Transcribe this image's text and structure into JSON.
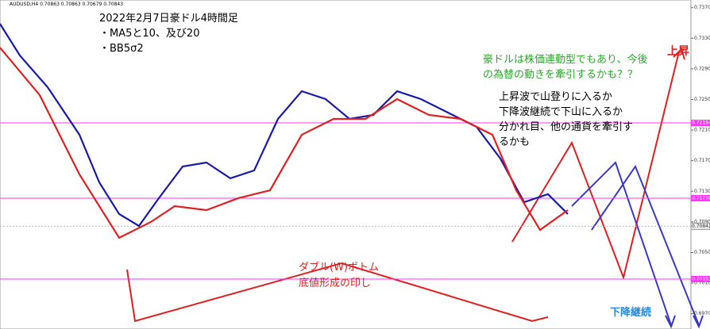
{
  "chart_data": {
    "type": "line",
    "symbol_label": "AUDUSD,H4  0.70863 0.70863 0.70679 0.70843",
    "title": "2022年2月7日豪ドル4時間足",
    "notes": [
      "・MA5と10、及び20",
      "・BB5σ2"
    ],
    "annotations": {
      "green": [
        "豪ドルは株価連動型でもあり、今後",
        "の為替の動きを牽引するかも？？"
      ],
      "black": [
        "上昇波で山登りに入るか",
        "下降波継続で下山に入るか",
        "分かれ目、他の通貨を牽引す",
        "るかも"
      ],
      "up": "上昇",
      "down": "下降継続",
      "bottom": [
        "ダブル(W)ボトム",
        "底値形成の印し"
      ]
    },
    "xlim": [
      0,
      870
    ],
    "ylim": [
      0.695,
      0.738
    ],
    "yticks": [
      {
        "value": 0.697,
        "label": "0.69700"
      },
      {
        "value": 0.701,
        "label": "0.70100"
      },
      {
        "value": 0.705,
        "label": "0.70500"
      },
      {
        "value": 0.709,
        "label": "0.70900"
      },
      {
        "value": 0.713,
        "label": "0.71300"
      },
      {
        "value": 0.717,
        "label": "0.71700"
      },
      {
        "value": 0.721,
        "label": "0.72100"
      },
      {
        "value": 0.725,
        "label": "0.72500"
      },
      {
        "value": 0.729,
        "label": "0.72900"
      },
      {
        "value": 0.733,
        "label": "0.73300"
      },
      {
        "value": 0.737,
        "label": "0.73700"
      }
    ],
    "levels": [
      {
        "value": 0.72194,
        "label": "0.72194"
      },
      {
        "value": 0.7121,
        "label": "0.71210"
      },
      {
        "value": 0.70153,
        "label": "0.70153"
      }
    ],
    "level_color": "#ff33ff",
    "current_price": {
      "value": 0.70843,
      "label": "0.70843"
    },
    "series": [
      {
        "name": "MA20",
        "color": "#1a1aa8",
        "x": [
          0,
          25,
          60,
          100,
          125,
          150,
          175,
          200,
          230,
          260,
          290,
          320,
          350,
          380,
          410,
          440,
          470,
          500,
          530,
          560,
          600,
          630,
          660,
          690,
          715
        ],
        "values": [
          0.73489,
          0.73075,
          0.7266,
          0.72039,
          0.71417,
          0.71003,
          0.70847,
          0.7121,
          0.71624,
          0.71676,
          0.71469,
          0.71572,
          0.72246,
          0.72608,
          0.72505,
          0.72246,
          0.72298,
          0.72608,
          0.72505,
          0.72349,
          0.72142,
          0.71728,
          0.71158,
          0.71262,
          0.71003
        ]
      },
      {
        "name": "MA10",
        "color": "#e02020",
        "x": [
          0,
          50,
          100,
          150,
          190,
          220,
          260,
          300,
          340,
          380,
          420,
          460,
          500,
          540,
          580,
          620,
          650,
          680,
          715
        ],
        "values": [
          0.73178,
          0.72557,
          0.71521,
          0.70692,
          0.70899,
          0.71106,
          0.71054,
          0.7121,
          0.71313,
          0.72039,
          0.72246,
          0.72246,
          0.72505,
          0.72298,
          0.72246,
          0.72039,
          0.71313,
          0.70795,
          0.71054
        ]
      }
    ]
  }
}
